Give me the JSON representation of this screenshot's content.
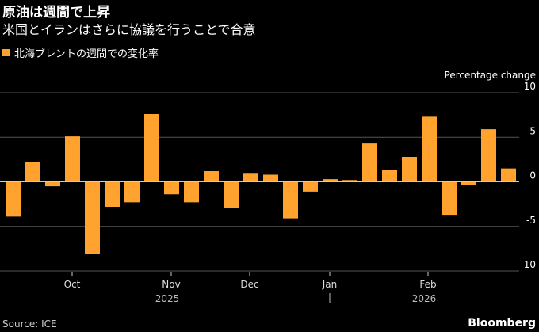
{
  "title": "原油は週間で上昇",
  "subtitle": "米国とイランはさらに協議を行うことで合意",
  "legend": "北海ブレントの週間での変化率",
  "source": "Source: ICE",
  "brand": "Bloomberg",
  "colors": {
    "bar": "#ffa32e",
    "grid": "#555555",
    "zero": "#cccccc"
  },
  "chart_data": {
    "type": "bar",
    "ylabel": "Percentage change",
    "ylim": [
      -10,
      10
    ],
    "yticks": [
      10,
      5,
      0,
      -5,
      -10
    ],
    "xticks": [
      {
        "label": "Oct",
        "index": 3.36
      },
      {
        "label": "Nov",
        "index": 8.36
      },
      {
        "label": "Dec",
        "index": 12.32
      },
      {
        "label": "Jan",
        "index": 16.36
      },
      {
        "label": "Feb",
        "index": 21.32
      }
    ],
    "years": [
      {
        "label": "2025",
        "index": 8.16
      },
      {
        "label": "2026",
        "index": 21.12
      }
    ],
    "values": [
      -3.9,
      2.2,
      -0.5,
      5.1,
      -8.1,
      -2.8,
      -2.3,
      7.6,
      -1.4,
      -2.3,
      1.2,
      -2.9,
      1.0,
      0.8,
      -4.1,
      -1.1,
      0.3,
      0.2,
      4.3,
      1.3,
      2.8,
      7.3,
      -3.7,
      -0.4,
      5.9,
      1.5
    ]
  }
}
